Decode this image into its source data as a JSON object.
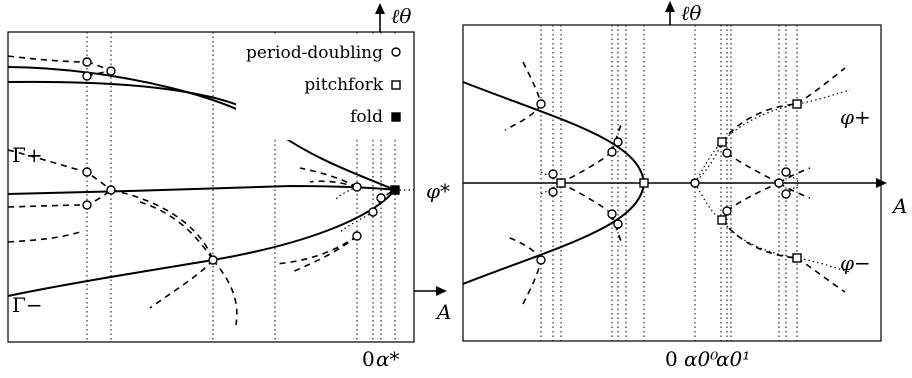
{
  "left_panel": {
    "axis_labels": {
      "vertical": "ℓθ",
      "horizontal": "A"
    },
    "branch_labels": {
      "upper": "Γ+",
      "lower": "Γ−",
      "phi_star": "φ*"
    },
    "tick_labels": {
      "zero": "0",
      "alpha_star": "α*"
    },
    "legend": {
      "period_doubling": "period-doubling",
      "pitchfork": "pitchfork",
      "fold": "fold"
    }
  },
  "right_panel": {
    "axis_labels": {
      "vertical": "ℓθ",
      "horizontal": "A"
    },
    "branch_labels": {
      "phi_plus": "φ+",
      "phi_minus": "φ−"
    },
    "tick_labels": {
      "zero": "0",
      "alpha_0_0": "α0⁰",
      "alpha_0_1": "α0¹"
    }
  }
}
